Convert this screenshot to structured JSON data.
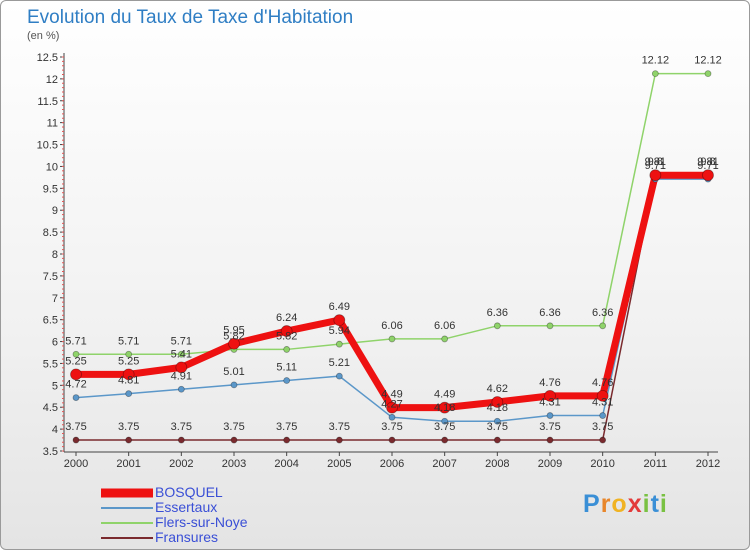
{
  "title": "Evolution du Taux de Taxe d'Habitation",
  "unit": "(en %)",
  "brand": {
    "letters": [
      {
        "ch": "P",
        "color": "#3a8fd6"
      },
      {
        "ch": "r",
        "color": "#e8862a"
      },
      {
        "ch": "o",
        "color": "#f0b323"
      },
      {
        "ch": "x",
        "color": "#e33a3a"
      },
      {
        "ch": "i",
        "color": "#79c142"
      },
      {
        "ch": "t",
        "color": "#3a8fd6"
      },
      {
        "ch": "i",
        "color": "#79c142"
      }
    ]
  },
  "chart_data": {
    "type": "line",
    "categories": [
      "2000",
      "2001",
      "2002",
      "2003",
      "2004",
      "2005",
      "2006",
      "2007",
      "2008",
      "2009",
      "2010",
      "2011",
      "2012"
    ],
    "y_ticks": [
      "3.5",
      "4",
      "4.5",
      "5",
      "5.5",
      "6",
      "6.5",
      "7",
      "7.5",
      "8",
      "8.5",
      "9",
      "9.5",
      "10",
      "10.5",
      "11",
      "11.5",
      "12",
      "12.5"
    ],
    "ylim": [
      3.5,
      12.5
    ],
    "ystep": 0.5,
    "grid": false,
    "legend_position": "bottom-left",
    "series": [
      {
        "name": "BOSQUEL",
        "color": "#ee1111",
        "line_width": 7,
        "marker_r": 5.5,
        "values": [
          5.25,
          5.25,
          5.41,
          5.95,
          6.24,
          6.49,
          4.49,
          4.49,
          4.62,
          4.76,
          4.76,
          9.8,
          9.8
        ],
        "labels": [
          "5.25",
          "5.25",
          "5.41",
          "5.95",
          "6.24",
          "6.49",
          "4.49",
          "4.49",
          "4.62",
          "4.76",
          "4.76",
          "9.8",
          "9.8"
        ]
      },
      {
        "name": "Essertaux",
        "color": "#5b97c9",
        "line_width": 1.5,
        "marker_r": 3,
        "values": [
          4.72,
          4.81,
          4.91,
          5.01,
          5.11,
          5.21,
          4.27,
          4.18,
          4.18,
          4.31,
          4.31,
          9.71,
          9.71
        ],
        "labels": [
          "4.72",
          "4.81",
          "4.91",
          "5.01",
          "5.11",
          "5.21",
          "4.27",
          "4.18",
          "4.18",
          "4.31",
          "4.31",
          "9.71",
          "9.71"
        ]
      },
      {
        "name": "Flers-sur-Noye",
        "color": "#8fd36a",
        "line_width": 1.5,
        "marker_r": 3,
        "values": [
          5.71,
          5.71,
          5.71,
          5.82,
          5.82,
          5.94,
          6.06,
          6.06,
          6.36,
          6.36,
          6.36,
          12.12,
          12.12
        ],
        "labels": [
          "5.71",
          "5.71",
          "5.71",
          "5.82",
          "5.82",
          "5.94",
          "6.06",
          "6.06",
          "6.36",
          "6.36",
          "6.36",
          "12.12",
          "12.12"
        ]
      },
      {
        "name": "Fransures",
        "color": "#7a2a2e",
        "line_width": 1.5,
        "marker_r": 3,
        "values": [
          3.75,
          3.75,
          3.75,
          3.75,
          3.75,
          3.75,
          3.75,
          3.75,
          3.75,
          3.75,
          3.75,
          9.81,
          9.81
        ],
        "labels": [
          "3.75",
          "3.75",
          "3.75",
          "3.75",
          "3.75",
          "3.75",
          "3.75",
          "3.75",
          "3.75",
          "3.75",
          "3.75",
          "9.81",
          "9.81"
        ]
      }
    ]
  }
}
